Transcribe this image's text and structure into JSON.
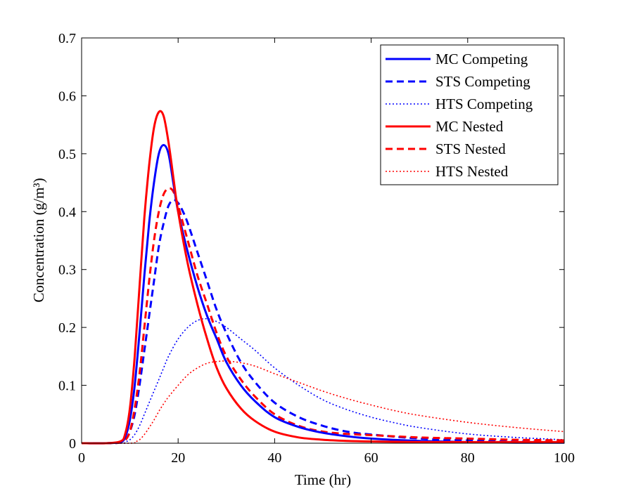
{
  "chart_data": {
    "type": "line",
    "title": "",
    "xlabel": "Time (hr)",
    "ylabel": "Concentration (g/m³)",
    "xlim": [
      0,
      100
    ],
    "ylim": [
      0,
      0.7
    ],
    "xticks": [
      0,
      20,
      40,
      60,
      80,
      100
    ],
    "xtick_labels": [
      "0",
      "20",
      "40",
      "60",
      "80",
      "100"
    ],
    "yticks": [
      0,
      0.1,
      0.2,
      0.3,
      0.4,
      0.5,
      0.6,
      0.7
    ],
    "ytick_labels": [
      "0",
      "0.1",
      "0.2",
      "0.3",
      "0.4",
      "0.5",
      "0.6",
      "0.7"
    ],
    "grid": false,
    "legend_position": "top-right",
    "series": [
      {
        "name": "MC Competing",
        "color": "#0000ff",
        "style": "solid",
        "x": [
          0,
          5,
          8,
          9,
          10,
          11,
          12,
          13,
          14,
          15,
          16,
          17,
          18,
          19,
          20,
          22,
          24,
          26,
          28,
          30,
          33,
          36,
          40,
          45,
          50,
          55,
          60,
          70,
          80,
          90,
          100
        ],
        "y": [
          0,
          0,
          0.002,
          0.01,
          0.04,
          0.1,
          0.19,
          0.29,
          0.38,
          0.45,
          0.5,
          0.515,
          0.5,
          0.45,
          0.4,
          0.33,
          0.27,
          0.22,
          0.18,
          0.14,
          0.1,
          0.072,
          0.045,
          0.028,
          0.018,
          0.012,
          0.008,
          0.004,
          0.002,
          0.001,
          0.001
        ]
      },
      {
        "name": "STS Competing",
        "color": "#0000ff",
        "style": "dashed",
        "x": [
          0,
          5,
          8,
          9,
          10,
          11,
          12,
          13,
          14,
          15,
          16,
          17,
          18,
          19,
          20,
          21,
          22,
          24,
          26,
          28,
          30,
          33,
          36,
          40,
          45,
          50,
          55,
          60,
          70,
          80,
          90,
          100
        ],
        "y": [
          0,
          0,
          0.001,
          0.005,
          0.02,
          0.05,
          0.1,
          0.16,
          0.22,
          0.28,
          0.34,
          0.38,
          0.41,
          0.42,
          0.415,
          0.4,
          0.38,
          0.33,
          0.28,
          0.23,
          0.19,
          0.14,
          0.105,
          0.07,
          0.045,
          0.03,
          0.02,
          0.015,
          0.008,
          0.005,
          0.003,
          0.002
        ]
      },
      {
        "name": "HTS Competing",
        "color": "#0000ff",
        "style": "dotted",
        "x": [
          0,
          8,
          9,
          10,
          11,
          12,
          13,
          14,
          15,
          16,
          17,
          18,
          20,
          22,
          24,
          26,
          28,
          30,
          33,
          36,
          40,
          45,
          50,
          55,
          60,
          65,
          70,
          80,
          90,
          100
        ],
        "y": [
          0,
          0,
          0.002,
          0.006,
          0.015,
          0.03,
          0.05,
          0.07,
          0.09,
          0.11,
          0.13,
          0.15,
          0.18,
          0.2,
          0.212,
          0.215,
          0.21,
          0.2,
          0.18,
          0.16,
          0.13,
          0.1,
          0.075,
          0.058,
          0.045,
          0.035,
          0.027,
          0.016,
          0.01,
          0.006
        ]
      },
      {
        "name": "MC Nested",
        "color": "#ff0000",
        "style": "solid",
        "x": [
          0,
          5,
          8,
          9,
          10,
          11,
          12,
          13,
          14,
          15,
          16,
          17,
          18,
          19,
          20,
          22,
          24,
          26,
          28,
          30,
          33,
          36,
          40,
          45,
          50,
          55,
          60,
          70,
          80,
          90,
          100
        ],
        "y": [
          0,
          0,
          0.003,
          0.015,
          0.06,
          0.15,
          0.27,
          0.39,
          0.48,
          0.545,
          0.572,
          0.565,
          0.52,
          0.46,
          0.4,
          0.31,
          0.24,
          0.18,
          0.13,
          0.095,
          0.06,
          0.038,
          0.02,
          0.01,
          0.006,
          0.004,
          0.003,
          0.002,
          0.002,
          0.002,
          0.002
        ]
      },
      {
        "name": "STS Nested",
        "color": "#ff0000",
        "style": "dashed",
        "x": [
          0,
          5,
          8,
          9,
          10,
          11,
          12,
          13,
          14,
          15,
          16,
          17,
          18,
          19,
          20,
          21,
          22,
          24,
          26,
          28,
          30,
          33,
          36,
          40,
          45,
          50,
          55,
          60,
          70,
          80,
          90,
          100
        ],
        "y": [
          0,
          0,
          0.001,
          0.005,
          0.02,
          0.06,
          0.12,
          0.2,
          0.28,
          0.35,
          0.4,
          0.43,
          0.44,
          0.435,
          0.41,
          0.38,
          0.35,
          0.29,
          0.24,
          0.19,
          0.15,
          0.11,
          0.08,
          0.05,
          0.03,
          0.02,
          0.016,
          0.014,
          0.01,
          0.008,
          0.006,
          0.005
        ]
      },
      {
        "name": "HTS Nested",
        "color": "#ff0000",
        "style": "dotted",
        "x": [
          0,
          10,
          11,
          12,
          13,
          14,
          15,
          16,
          17,
          18,
          20,
          22,
          24,
          26,
          28,
          30,
          33,
          36,
          40,
          45,
          50,
          55,
          60,
          65,
          70,
          80,
          90,
          100
        ],
        "y": [
          0,
          0,
          0.002,
          0.006,
          0.015,
          0.027,
          0.04,
          0.055,
          0.068,
          0.08,
          0.1,
          0.118,
          0.13,
          0.138,
          0.141,
          0.142,
          0.139,
          0.133,
          0.12,
          0.105,
          0.09,
          0.077,
          0.066,
          0.056,
          0.048,
          0.036,
          0.027,
          0.02
        ]
      }
    ]
  }
}
